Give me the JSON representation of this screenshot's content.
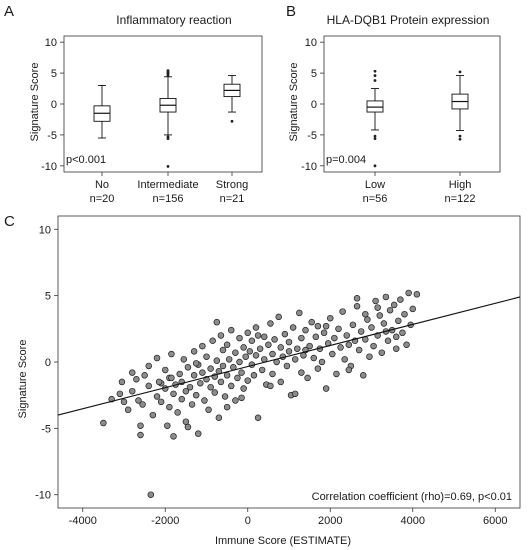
{
  "chart_data": [
    {
      "type": "box",
      "panel": "A",
      "title": "Inflammatory reaction",
      "ylabel": "Signature Score",
      "ylim": [
        -11,
        11
      ],
      "yticks": [
        -10,
        -5,
        0,
        5,
        10
      ],
      "categories": [
        {
          "label": "No",
          "n": "n=20",
          "min": -5.5,
          "q1": -2.8,
          "median": -1.5,
          "q3": -0.3,
          "max": 3.0,
          "outliers": []
        },
        {
          "label": "Intermediate",
          "n": "n=156",
          "min": -5.0,
          "q1": -1.3,
          "median": -0.2,
          "q3": 0.9,
          "max": 4.4,
          "outliers": [
            4.6,
            4.9,
            5.0,
            5.2,
            5.4,
            -5.3,
            -5.6,
            -10.1
          ]
        },
        {
          "label": "Strong",
          "n": "n=21",
          "min": -1.3,
          "q1": 1.2,
          "median": 2.2,
          "q3": 3.2,
          "max": 4.6,
          "outliers": [
            -2.8
          ]
        }
      ],
      "annotation": "p<0.001"
    },
    {
      "type": "box",
      "panel": "B",
      "title": "HLA-DQB1 Protein expression",
      "ylabel": "Signature Score",
      "ylim": [
        -11,
        11
      ],
      "yticks": [
        -10,
        -5,
        0,
        5,
        10
      ],
      "categories": [
        {
          "label": "Low",
          "n": "n=56",
          "min": -4.2,
          "q1": -1.3,
          "median": -0.5,
          "q3": 0.5,
          "max": 2.5,
          "outliers": [
            3.8,
            4.6,
            5.3,
            -5.2,
            -5.6,
            -10.0
          ]
        },
        {
          "label": "High",
          "n": "n=122",
          "min": -4.3,
          "q1": -0.8,
          "median": 0.4,
          "q3": 1.6,
          "max": 4.6,
          "outliers": [
            5.2,
            -5.2,
            -5.7
          ]
        }
      ],
      "annotation": "p=0.004"
    },
    {
      "type": "scatter",
      "panel": "C",
      "xlabel": "Immune Score (ESTIMATE)",
      "ylabel": "Signature Score",
      "xlim": [
        -4600,
        6600
      ],
      "ylim": [
        -11,
        11
      ],
      "xticks": [
        -4000,
        -2000,
        0,
        2000,
        4000,
        6000
      ],
      "yticks": [
        -10,
        -5,
        0,
        5,
        10
      ],
      "trendline": {
        "x": [
          -4600,
          6600
        ],
        "y": [
          -4.0,
          4.9
        ]
      },
      "annotation": "Correlation coefficient (rho)=0.69, p<0.01",
      "points": [
        [
          -3500,
          -4.6
        ],
        [
          -3300,
          -2.8
        ],
        [
          -3100,
          -2.4
        ],
        [
          -3050,
          -1.5
        ],
        [
          -2900,
          -3.6
        ],
        [
          -2800,
          -0.8
        ],
        [
          -2800,
          -2.2
        ],
        [
          -2700,
          -1.3
        ],
        [
          -2600,
          -5.5
        ],
        [
          -2600,
          -4.8
        ],
        [
          -2550,
          -3.2
        ],
        [
          -2500,
          -1.0
        ],
        [
          -2400,
          -0.3
        ],
        [
          -2400,
          -1.8
        ],
        [
          -2300,
          -4.0
        ],
        [
          -2350,
          -10.0
        ],
        [
          -2200,
          0.3
        ],
        [
          -2200,
          -2.6
        ],
        [
          -2100,
          -3.0
        ],
        [
          -2100,
          -1.6
        ],
        [
          -2000,
          -0.6
        ],
        [
          -2000,
          -2.0
        ],
        [
          -1950,
          -4.8
        ],
        [
          -1900,
          -3.4
        ],
        [
          -1900,
          -1.2
        ],
        [
          -1850,
          0.6
        ],
        [
          -1800,
          -2.4
        ],
        [
          -1800,
          -5.6
        ],
        [
          -1750,
          -1.7
        ],
        [
          -1700,
          -3.8
        ],
        [
          -1650,
          -0.9
        ],
        [
          -1600,
          -2.8
        ],
        [
          -1600,
          -1.5
        ],
        [
          -1550,
          0.2
        ],
        [
          -1500,
          -2.2
        ],
        [
          -1500,
          -4.5
        ],
        [
          -1450,
          -0.4
        ],
        [
          -1400,
          -1.9
        ],
        [
          -1350,
          -3.2
        ],
        [
          -1300,
          0.8
        ],
        [
          -1300,
          -1.0
        ],
        [
          -1250,
          -2.5
        ],
        [
          -1200,
          -0.2
        ],
        [
          -1200,
          -5.4
        ],
        [
          -1150,
          -1.6
        ],
        [
          -1100,
          1.2
        ],
        [
          -1100,
          -0.8
        ],
        [
          -1050,
          -2.9
        ],
        [
          -1000,
          -1.3
        ],
        [
          -1000,
          0.4
        ],
        [
          -950,
          -3.6
        ],
        [
          -900,
          -0.5
        ],
        [
          -900,
          -1.9
        ],
        [
          -850,
          1.6
        ],
        [
          -800,
          -1.1
        ],
        [
          -800,
          -2.3
        ],
        [
          -750,
          3.0
        ],
        [
          -750,
          0.1
        ],
        [
          -700,
          -0.7
        ],
        [
          -700,
          -4.2
        ],
        [
          -650,
          -1.5
        ],
        [
          -600,
          0.9
        ],
        [
          -600,
          -0.3
        ],
        [
          -550,
          -2.6
        ],
        [
          -500,
          1.3
        ],
        [
          -500,
          -1.0
        ],
        [
          -450,
          0.2
        ],
        [
          -400,
          -1.8
        ],
        [
          -400,
          2.4
        ],
        [
          -350,
          -0.4
        ],
        [
          -300,
          0.7
        ],
        [
          -300,
          -2.9
        ],
        [
          -250,
          -1.2
        ],
        [
          -200,
          1.8
        ],
        [
          -200,
          0.0
        ],
        [
          -150,
          -0.8
        ],
        [
          -100,
          1.1
        ],
        [
          -100,
          -2.0
        ],
        [
          -50,
          0.4
        ],
        [
          0,
          -1.4
        ],
        [
          0,
          2.2
        ],
        [
          50,
          0.8
        ],
        [
          100,
          -0.2
        ],
        [
          100,
          1.6
        ],
        [
          150,
          -1.0
        ],
        [
          200,
          0.5
        ],
        [
          200,
          2.6
        ],
        [
          250,
          -4.2
        ],
        [
          300,
          1.0
        ],
        [
          350,
          -0.6
        ],
        [
          400,
          1.9
        ],
        [
          400,
          0.2
        ],
        [
          450,
          -1.7
        ],
        [
          500,
          1.3
        ],
        [
          550,
          2.9
        ],
        [
          600,
          0.6
        ],
        [
          600,
          -0.9
        ],
        [
          650,
          1.7
        ],
        [
          700,
          0.0
        ],
        [
          750,
          3.4
        ],
        [
          800,
          1.1
        ],
        [
          800,
          -1.5
        ],
        [
          850,
          0.4
        ],
        [
          900,
          2.1
        ],
        [
          950,
          -0.3
        ],
        [
          1000,
          1.5
        ],
        [
          1000,
          0.8
        ],
        [
          1050,
          -2.5
        ],
        [
          1100,
          2.6
        ],
        [
          1150,
          0.2
        ],
        [
          1200,
          1.0
        ],
        [
          1250,
          3.7
        ],
        [
          1300,
          -0.8
        ],
        [
          1300,
          1.8
        ],
        [
          1350,
          0.5
        ],
        [
          1400,
          2.4
        ],
        [
          1450,
          -1.2
        ],
        [
          1500,
          1.2
        ],
        [
          1550,
          3.0
        ],
        [
          1600,
          0.3
        ],
        [
          1650,
          1.9
        ],
        [
          1700,
          -0.5
        ],
        [
          1700,
          2.7
        ],
        [
          1750,
          1.0
        ],
        [
          1800,
          0.0
        ],
        [
          1850,
          2.2
        ],
        [
          1900,
          -2.0
        ],
        [
          1950,
          1.4
        ],
        [
          2000,
          3.3
        ],
        [
          2050,
          0.6
        ],
        [
          2100,
          1.8
        ],
        [
          2150,
          -0.9
        ],
        [
          2200,
          2.5
        ],
        [
          2250,
          1.1
        ],
        [
          2300,
          3.8
        ],
        [
          2350,
          0.2
        ],
        [
          2400,
          2.0
        ],
        [
          2450,
          1.3
        ],
        [
          2500,
          -0.3
        ],
        [
          2550,
          2.8
        ],
        [
          2600,
          1.6
        ],
        [
          2650,
          4.2
        ],
        [
          2700,
          0.9
        ],
        [
          2750,
          2.3
        ],
        [
          2800,
          -1.0
        ],
        [
          2850,
          1.7
        ],
        [
          2900,
          3.2
        ],
        [
          2950,
          0.4
        ],
        [
          3000,
          2.6
        ],
        [
          3050,
          1.2
        ],
        [
          3100,
          4.6
        ],
        [
          3150,
          2.0
        ],
        [
          3200,
          3.5
        ],
        [
          3250,
          0.7
        ],
        [
          3300,
          2.9
        ],
        [
          3350,
          4.9
        ],
        [
          3400,
          1.6
        ],
        [
          3450,
          3.9
        ],
        [
          3500,
          2.4
        ],
        [
          3550,
          4.3
        ],
        [
          3600,
          1.9
        ],
        [
          3650,
          3.1
        ],
        [
          3700,
          4.7
        ],
        [
          3750,
          2.2
        ],
        [
          3800,
          3.6
        ],
        [
          3850,
          1.3
        ],
        [
          3900,
          5.2
        ],
        [
          3950,
          2.8
        ],
        [
          4000,
          4.0
        ],
        [
          4100,
          5.1
        ],
        [
          2450,
          -0.6
        ],
        [
          -1850,
          -1.2
        ],
        [
          1150,
          -2.4
        ],
        [
          -2650,
          -2.9
        ],
        [
          3600,
          1.0
        ],
        [
          -500,
          -3.4
        ],
        [
          550,
          -1.8
        ],
        [
          -3000,
          -3.0
        ],
        [
          2650,
          4.8
        ],
        [
          3150,
          4.1
        ],
        [
          -1450,
          -4.9
        ],
        [
          -150,
          -2.7
        ],
        [
          1900,
          2.7
        ],
        [
          -2150,
          -1.5
        ],
        [
          1400,
          0.9
        ],
        [
          -650,
          2.0
        ],
        [
          2850,
          3.6
        ],
        [
          -1250,
          -0.1
        ],
        [
          250,
          2.0
        ],
        [
          3350,
          2.3
        ]
      ]
    }
  ]
}
